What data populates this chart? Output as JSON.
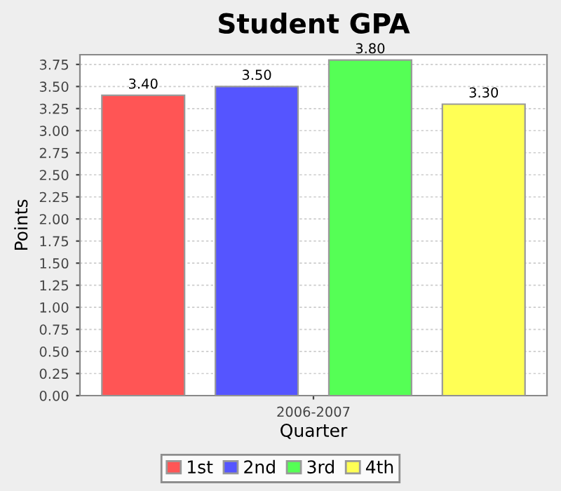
{
  "chart_data": {
    "type": "bar",
    "title": "Student GPA",
    "xlabel": "Quarter",
    "ylabel": "Points",
    "categories": [
      "2006-2007"
    ],
    "series": [
      {
        "name": "1st",
        "color": "#ff5555",
        "values": [
          3.4
        ],
        "value_labels": [
          "3.40"
        ]
      },
      {
        "name": "2nd",
        "color": "#5555ff",
        "values": [
          3.5
        ],
        "value_labels": [
          "3.50"
        ]
      },
      {
        "name": "3rd",
        "color": "#55ff55",
        "values": [
          3.8
        ],
        "value_labels": [
          "3.80"
        ]
      },
      {
        "name": "4th",
        "color": "#ffff55",
        "values": [
          3.3
        ],
        "value_labels": [
          "3.30"
        ]
      }
    ],
    "ylim": [
      0,
      3.86
    ],
    "yticks": [
      {
        "value": 0,
        "label": "0.00"
      },
      {
        "value": 0.25,
        "label": "0.25"
      },
      {
        "value": 0.5,
        "label": "0.50"
      },
      {
        "value": 0.75,
        "label": "0.75"
      },
      {
        "value": 1,
        "label": "1.00"
      },
      {
        "value": 1.25,
        "label": "1.25"
      },
      {
        "value": 1.5,
        "label": "1.50"
      },
      {
        "value": 1.75,
        "label": "1.75"
      },
      {
        "value": 2,
        "label": "2.00"
      },
      {
        "value": 2.25,
        "label": "2.25"
      },
      {
        "value": 2.5,
        "label": "2.50"
      },
      {
        "value": 2.75,
        "label": "2.75"
      },
      {
        "value": 3,
        "label": "3.00"
      },
      {
        "value": 3.25,
        "label": "3.25"
      },
      {
        "value": 3.5,
        "label": "3.50"
      },
      {
        "value": 3.75,
        "label": "3.75"
      }
    ],
    "grid": "y",
    "legend": "bottom"
  }
}
